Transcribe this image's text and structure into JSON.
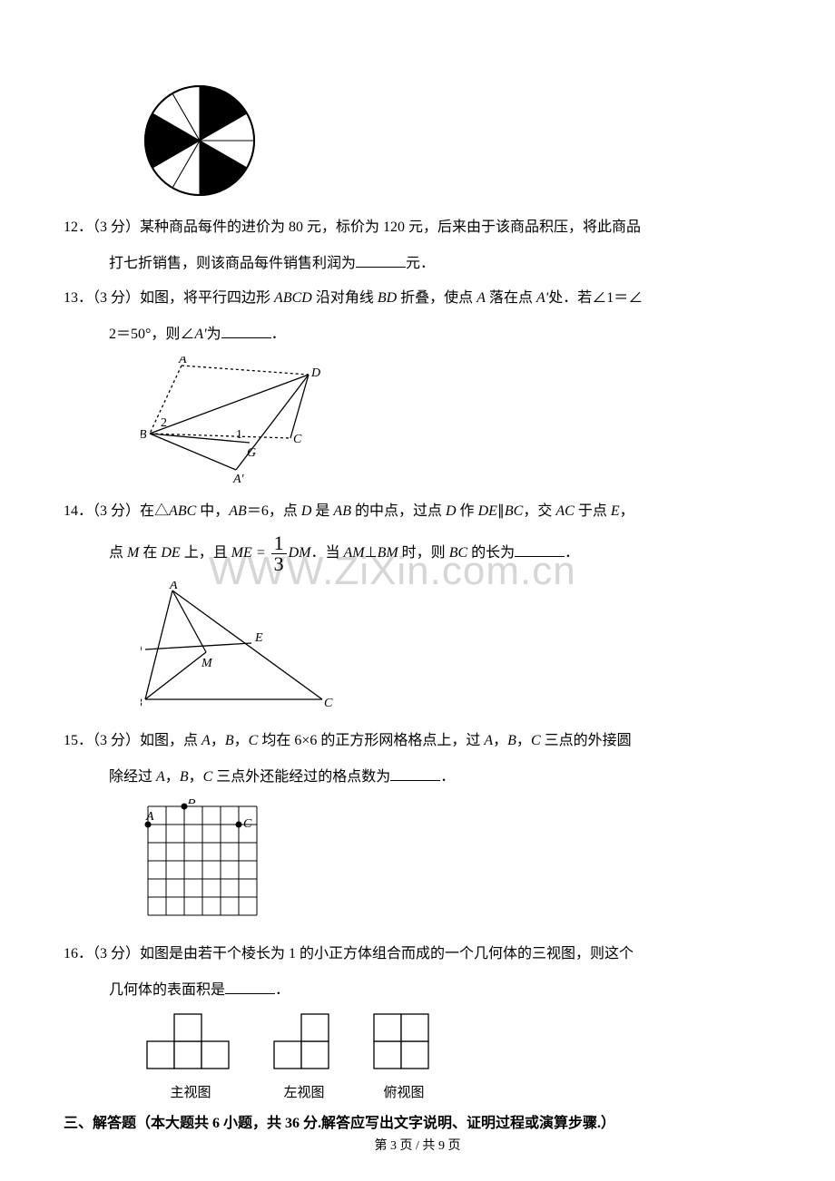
{
  "watermark": "WWW.ZiXin.com.cn",
  "spinner": {
    "segments": 12,
    "black_segments": [
      0,
      1,
      4,
      5,
      8,
      9
    ],
    "radius": 60,
    "fill": "#000000",
    "bg": "#ffffff",
    "stroke": "#000000"
  },
  "questions": {
    "q12": {
      "num": "12．",
      "points": "（3 分）",
      "text_a": "某种商品每件的进价为 80 元，标价为 120 元，后来由于该商品积压，将此商品",
      "text_b": "打七折销售，则该商品每件销售利润为",
      "text_c": "元．"
    },
    "q13": {
      "num": "13．",
      "points": "（3 分）",
      "text_a": "如图，将平行四边形 ",
      "abcd": "ABCD",
      "text_b": " 沿对角线 ",
      "bd": "BD",
      "text_c": " 折叠，使点 ",
      "a": "A",
      "text_d": " 落在点 ",
      "aprime": "A'",
      "text_e": "处．若∠1＝∠",
      "line2_a": "2＝50°，则∠",
      "line2_b": "A'",
      "line2_c": "为",
      "line2_d": "．",
      "figure": {
        "points": {
          "A": [
            45,
            10
          ],
          "D": [
            185,
            20
          ],
          "B": [
            10,
            85
          ],
          "G": [
            120,
            95
          ],
          "C": [
            165,
            90
          ],
          "Aprime": [
            105,
            125
          ]
        },
        "label_A": "A",
        "label_D": "D",
        "label_B": "B",
        "label_G": "G",
        "label_C": "C",
        "label_Aprime": "A'",
        "angle1": "1",
        "angle2": "2",
        "stroke": "#000000"
      }
    },
    "q14": {
      "num": "14．",
      "points": "（3 分）",
      "text_a": "在△",
      "abc": "ABC",
      "text_b": " 中，",
      "ab": "AB",
      "text_c": "＝6，点 ",
      "d": "D",
      "text_d": " 是 ",
      "ab2": "AB",
      "text_e": " 的中点，过点 ",
      "d2": "D",
      "text_f": " 作 ",
      "de": "DE",
      "par": "∥",
      "bc": "BC",
      "text_g": "，交 ",
      "ac": "AC",
      "text_h": " 于点 ",
      "e": "E",
      "text_i": "，",
      "line2_a": "点 ",
      "m": "M",
      "line2_b": " 在 ",
      "de2": "DE",
      "line2_c": " 上，且 ",
      "me": "ME",
      "eq": " = ",
      "frac_top": "1",
      "frac_bot": "3",
      "dm": "DM",
      "line2_d": "．当 ",
      "am": "AM",
      "perp": "⊥",
      "bm": "BM",
      "line2_e": " 时，则 ",
      "bc2": "BC",
      "line2_f": " 的长为",
      "line2_g": "．",
      "figure": {
        "points": {
          "A": [
            35,
            10
          ],
          "D": [
            5,
            75
          ],
          "M": [
            72,
            78
          ],
          "E": [
            122,
            68
          ],
          "B": [
            5,
            130
          ],
          "C": [
            200,
            130
          ]
        },
        "label_A": "A",
        "label_D": "D",
        "label_M": "M",
        "label_E": "E",
        "label_B": "B",
        "label_C": "C",
        "stroke": "#000000"
      }
    },
    "q15": {
      "num": "15．",
      "points": "（3 分）",
      "text_a": "如图，点 ",
      "a": "A",
      "comma1": "，",
      "b": "B",
      "comma2": "，",
      "c": "C",
      "text_b": " 均在 6×6 的正方形网格格点上，过 ",
      "a2": "A",
      "comma3": "，",
      "b2": "B",
      "comma4": "，",
      "c2": "C",
      "text_c": " 三点的外接圆",
      "line2_a": "除经过 ",
      "a3": "A",
      "comma5": "，",
      "b3": "B",
      "comma6": "，",
      "c3": "C",
      "line2_b": " 三点外还能经过的格点数为",
      "line2_c": "．",
      "figure": {
        "grid_size": 6,
        "cell": 20,
        "A_pos": [
          0,
          1
        ],
        "B_pos": [
          2,
          0
        ],
        "C_pos": [
          5,
          1
        ],
        "label_A": "A",
        "label_B": "B",
        "label_C": "C",
        "stroke": "#000000"
      }
    },
    "q16": {
      "num": "16．",
      "points": "（3 分）",
      "text_a": "如图是由若干个棱长为 1 的小正方体组合而成的一个几何体的三视图，则这个",
      "line2_a": "几何体的表面积是",
      "line2_b": "．",
      "views": {
        "front": {
          "label": "主视图",
          "cells": [
            [
              0,
              0
            ],
            [
              1,
              0
            ],
            [
              2,
              0
            ],
            [
              1,
              1
            ]
          ]
        },
        "left": {
          "label": "左视图",
          "cells": [
            [
              0,
              0
            ],
            [
              1,
              0
            ],
            [
              1,
              1
            ]
          ]
        },
        "top": {
          "label": "俯视图",
          "cells": [
            [
              0,
              0
            ],
            [
              1,
              0
            ],
            [
              0,
              1
            ],
            [
              1,
              1
            ]
          ]
        },
        "cell_size": 30,
        "stroke": "#000000"
      }
    }
  },
  "section3": {
    "title": "三、解答题（本大题共 6 小题，共 36 分.解答应写出文字说明、证明过程或演算步骤.）"
  },
  "footer": {
    "text_a": "第 ",
    "page": "3",
    "text_b": " 页 / 共 ",
    "total": "9",
    "text_c": " 页"
  }
}
